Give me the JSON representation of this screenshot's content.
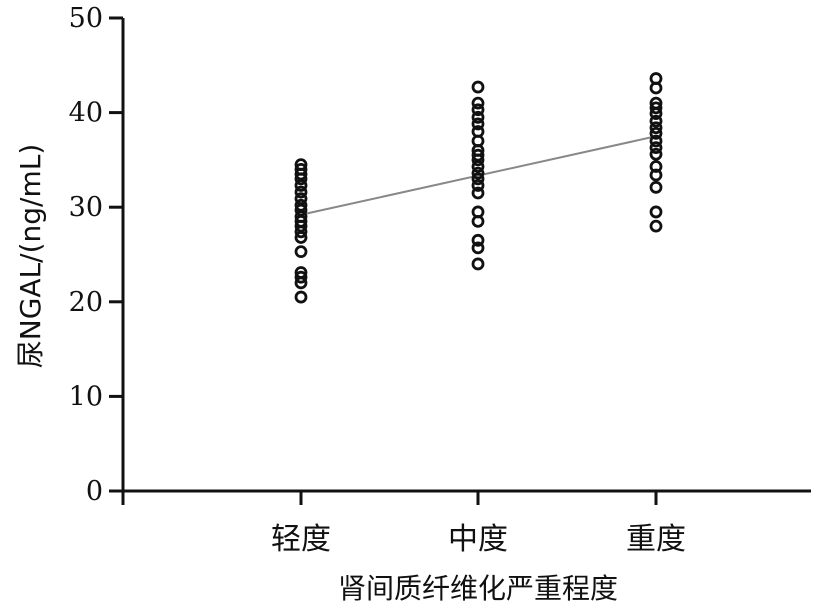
{
  "chart_data": {
    "type": "scatter",
    "xlabel": "肾间质纤维化严重程度",
    "ylabel": "尿NGAL/(ng/mL)",
    "categories": [
      "轻度",
      "中度",
      "重度"
    ],
    "ylim": [
      0,
      50
    ],
    "yticks": [
      0,
      10,
      20,
      30,
      40,
      50
    ],
    "grid": false,
    "legend": "none",
    "colors": {
      "marker": "#111111",
      "trendline": "#888888",
      "axis": "#111111"
    },
    "series": [
      {
        "category": "轻度",
        "values": [
          34.5,
          34.0,
          33.5,
          33.0,
          32.3,
          31.6,
          30.9,
          30.2,
          29.7,
          29.0,
          28.5,
          28.0,
          27.4,
          26.8,
          25.3,
          23.1,
          22.6,
          22.0,
          20.5
        ]
      },
      {
        "category": "中度",
        "values": [
          42.7,
          41.0,
          40.3,
          39.5,
          38.8,
          38.0,
          37.0,
          36.0,
          35.5,
          35.0,
          34.3,
          33.6,
          33.0,
          32.3,
          31.5,
          29.5,
          28.5,
          26.5,
          25.7,
          24.0
        ]
      },
      {
        "category": "重度",
        "values": [
          43.6,
          42.6,
          41.0,
          40.5,
          39.9,
          39.1,
          38.4,
          37.8,
          37.0,
          36.3,
          35.6,
          34.3,
          33.4,
          32.1,
          29.5,
          28.0
        ]
      }
    ],
    "trendline": {
      "start": {
        "category": "轻度",
        "y": 29.2
      },
      "end": {
        "category": "重度",
        "y": 37.5
      }
    }
  }
}
